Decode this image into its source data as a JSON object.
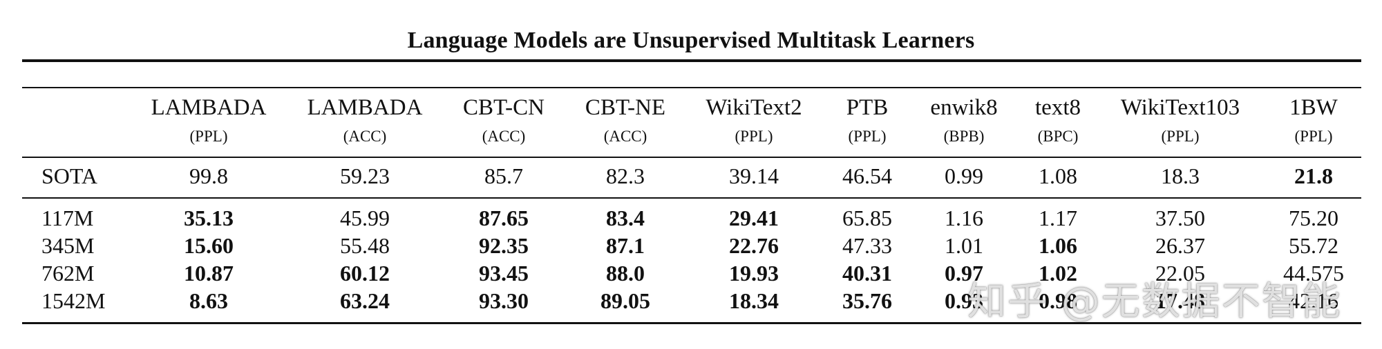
{
  "title": "Language Models are Unsupervised Multitask Learners",
  "columns": [
    {
      "name": "LAMBADA",
      "unit": "(PPL)"
    },
    {
      "name": "LAMBADA",
      "unit": "(ACC)"
    },
    {
      "name": "CBT-CN",
      "unit": "(ACC)"
    },
    {
      "name": "CBT-NE",
      "unit": "(ACC)"
    },
    {
      "name": "WikiText2",
      "unit": "(PPL)"
    },
    {
      "name": "PTB",
      "unit": "(PPL)"
    },
    {
      "name": "enwik8",
      "unit": "(BPB)"
    },
    {
      "name": "text8",
      "unit": "(BPC)"
    },
    {
      "name": "WikiText103",
      "unit": "(PPL)"
    },
    {
      "name": "1BW",
      "unit": "(PPL)"
    }
  ],
  "rows": [
    {
      "label": "SOTA",
      "values": [
        "99.8",
        "59.23",
        "85.7",
        "82.3",
        "39.14",
        "46.54",
        "0.99",
        "1.08",
        "18.3",
        "21.8"
      ],
      "bold": [
        false,
        false,
        false,
        false,
        false,
        false,
        false,
        false,
        false,
        true
      ]
    },
    {
      "label": "117M",
      "values": [
        "35.13",
        "45.99",
        "87.65",
        "83.4",
        "29.41",
        "65.85",
        "1.16",
        "1.17",
        "37.50",
        "75.20"
      ],
      "bold": [
        true,
        false,
        true,
        true,
        true,
        false,
        false,
        false,
        false,
        false
      ]
    },
    {
      "label": "345M",
      "values": [
        "15.60",
        "55.48",
        "92.35",
        "87.1",
        "22.76",
        "47.33",
        "1.01",
        "1.06",
        "26.37",
        "55.72"
      ],
      "bold": [
        true,
        false,
        true,
        true,
        true,
        false,
        false,
        true,
        false,
        false
      ]
    },
    {
      "label": "762M",
      "values": [
        "10.87",
        "60.12",
        "93.45",
        "88.0",
        "19.93",
        "40.31",
        "0.97",
        "1.02",
        "22.05",
        "44.575"
      ],
      "bold": [
        true,
        true,
        true,
        true,
        true,
        true,
        true,
        true,
        false,
        false
      ]
    },
    {
      "label": "1542M",
      "values": [
        "8.63",
        "63.24",
        "93.30",
        "89.05",
        "18.34",
        "35.76",
        "0.93",
        "0.98",
        "17.48",
        "42.16"
      ],
      "bold": [
        true,
        true,
        true,
        true,
        true,
        true,
        true,
        true,
        true,
        false
      ]
    }
  ],
  "watermark": "知乎 @无数据不智能"
}
